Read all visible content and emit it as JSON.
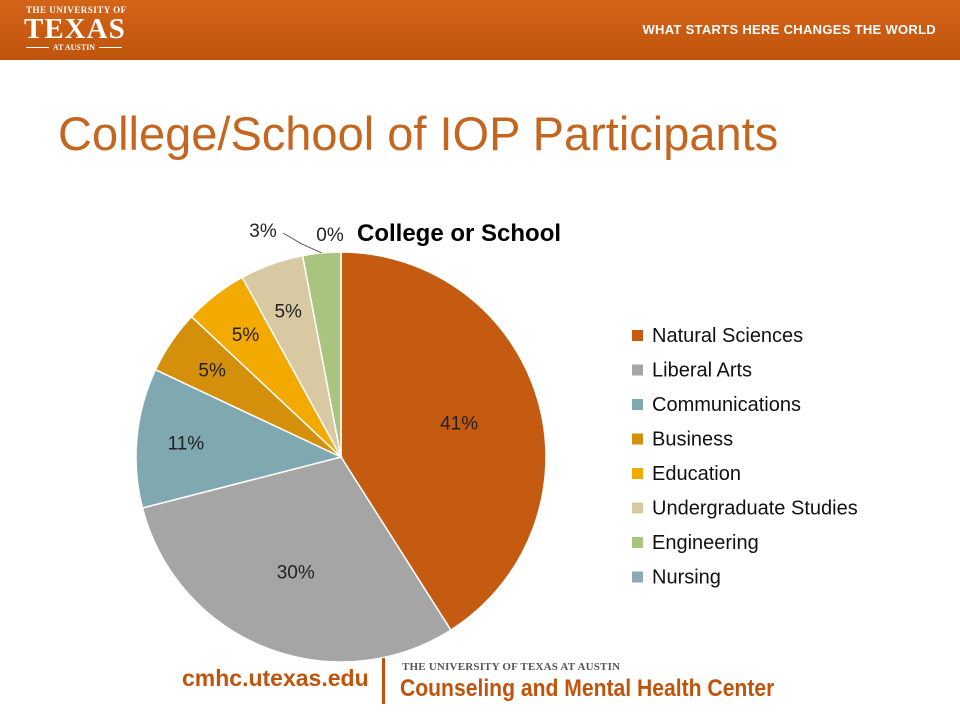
{
  "header": {
    "logo_small": "THE UNIVERSITY OF",
    "logo_main": "TEXAS",
    "logo_sub": "AT AUSTIN",
    "tagline": "WHAT STARTS HERE CHANGES THE WORLD"
  },
  "slide": {
    "title": "College/School of IOP Participants"
  },
  "chart_data": {
    "type": "pie",
    "title": "College or School",
    "legend_position": "right",
    "categories": [
      "Natural Sciences",
      "Liberal Arts",
      "Communications",
      "Business",
      "Education",
      "Undergraduate Studies",
      "Engineering",
      "Nursing"
    ],
    "values": [
      41,
      30,
      11,
      5,
      5,
      5,
      3,
      0
    ],
    "labels": [
      "41%",
      "30%",
      "11%",
      "5%",
      "5%",
      "5%",
      "3%",
      "0%"
    ],
    "colors": [
      "#c55a11",
      "#a5a5a5",
      "#7fa8b0",
      "#d4900a",
      "#f2a900",
      "#d8c9a3",
      "#a9c47f",
      "#8fa8b3"
    ]
  },
  "footer": {
    "url": "cmhc.utexas.edu",
    "institution": "THE UNIVERSITY OF TEXAS AT AUSTIN",
    "center": "Counseling and Mental Health Center"
  }
}
